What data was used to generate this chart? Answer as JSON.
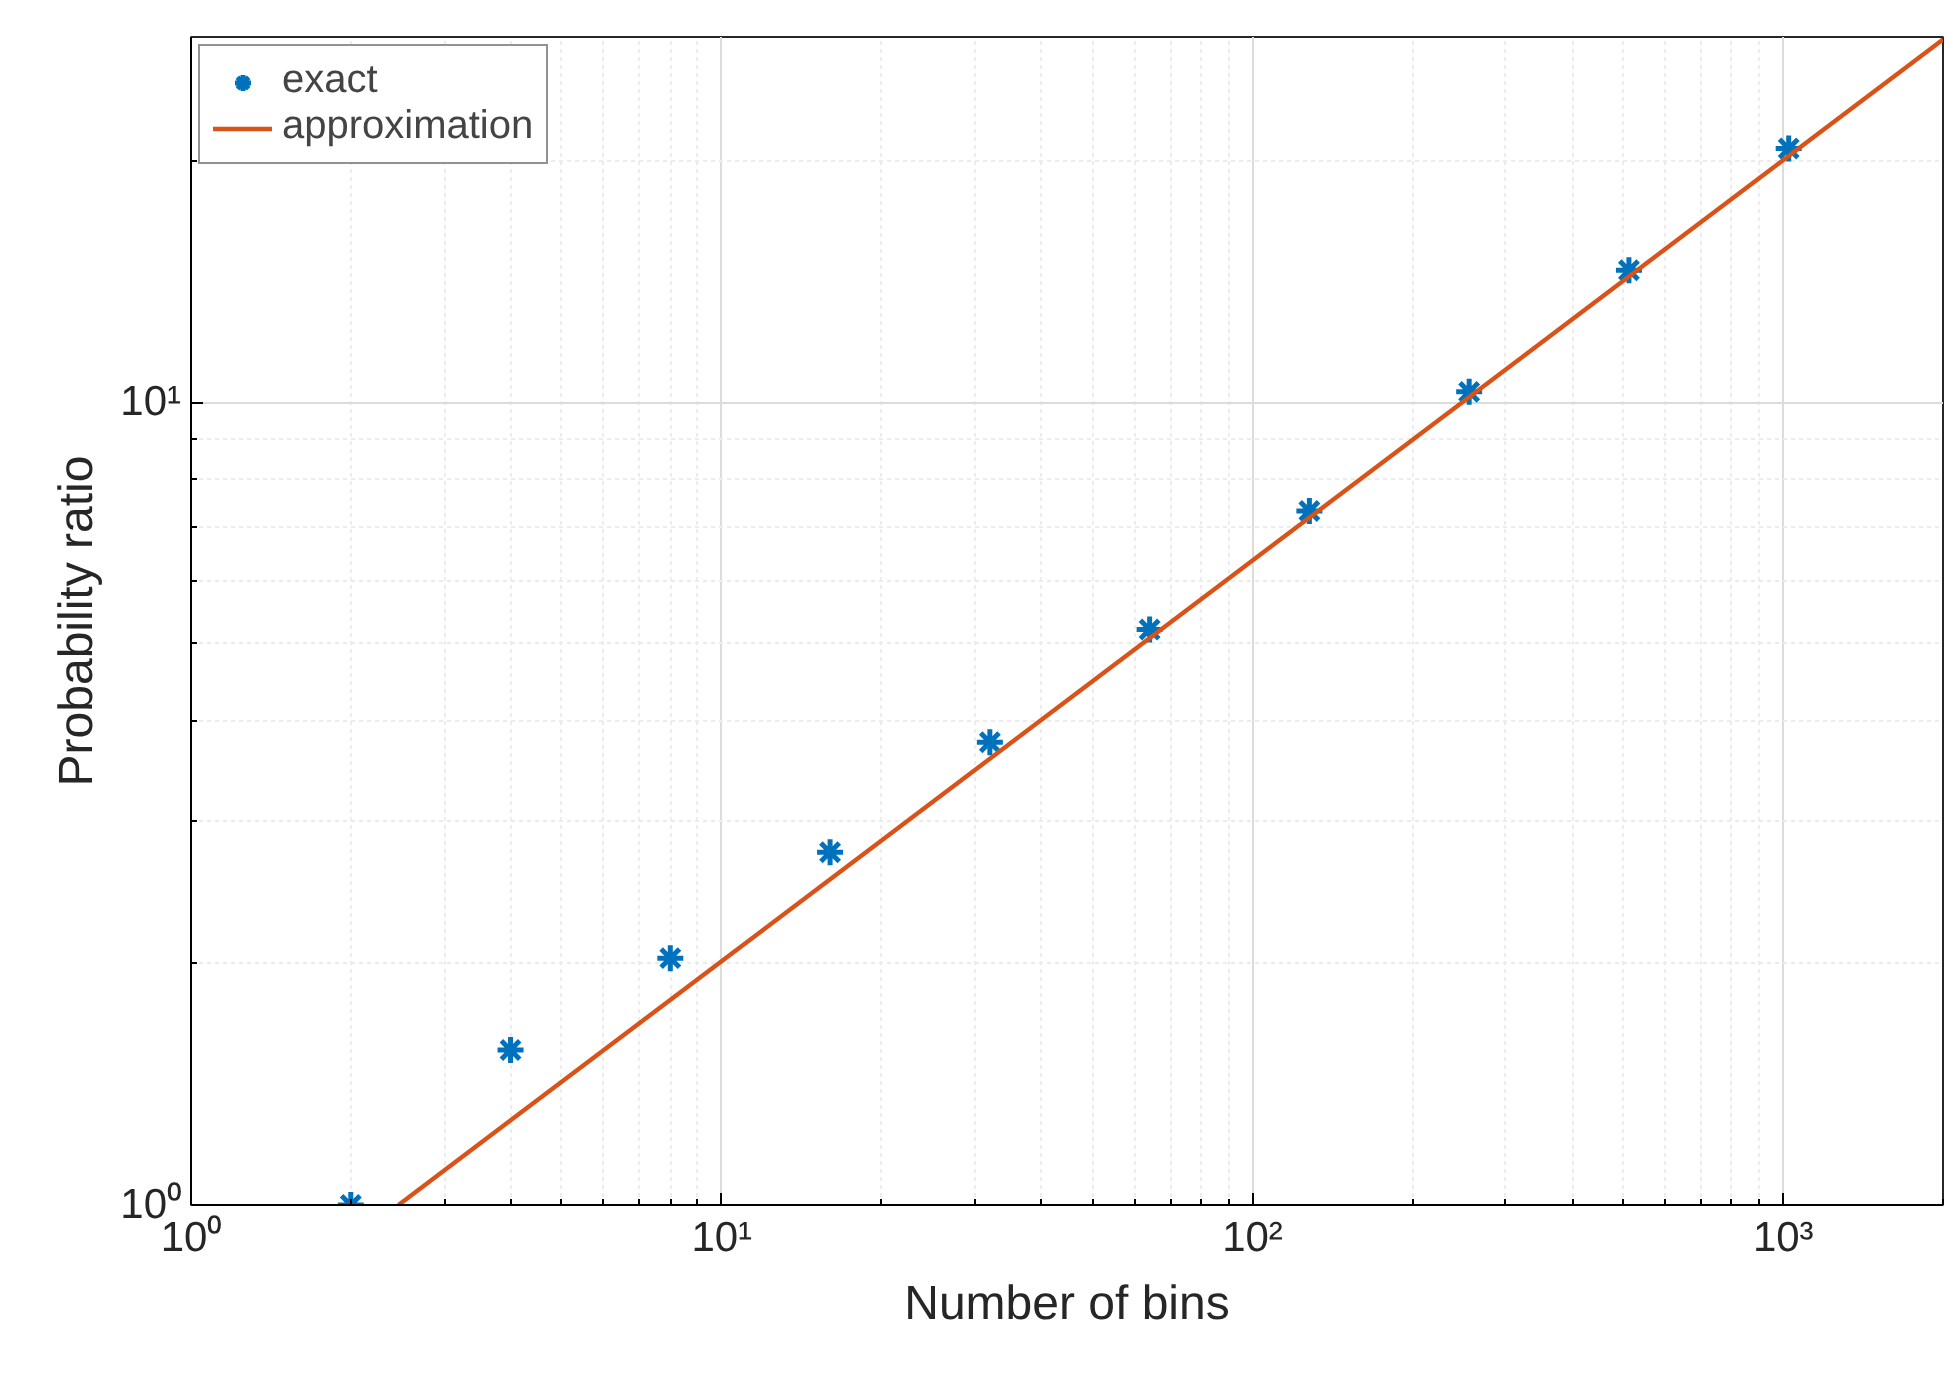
{
  "chart_data": {
    "type": "scatter",
    "xlabel": "Number of bins",
    "ylabel": "Probability ratio",
    "log": "xy",
    "grid": true,
    "legend": "top left",
    "xlim": [
      1,
      2000
    ],
    "ylim": [
      1,
      28.5
    ],
    "xticks": [
      {
        "value": 1,
        "label": "10⁰"
      },
      {
        "value": 10,
        "label": "10¹"
      },
      {
        "value": 100,
        "label": "10²"
      },
      {
        "value": 1000,
        "label": "10³"
      }
    ],
    "yticks": [
      {
        "value": 1,
        "label": "10⁰"
      },
      {
        "value": 10,
        "label": "10¹"
      }
    ],
    "series": [
      {
        "name": "exact",
        "type": "scatter",
        "marker": "cross",
        "color": "#0072bd",
        "x": [
          2,
          4,
          8,
          16,
          32,
          64,
          128,
          256,
          512,
          1024
        ],
        "values": [
          1.0,
          1.56,
          2.03,
          2.75,
          3.77,
          5.21,
          7.32,
          10.3,
          14.6,
          20.7
        ]
      },
      {
        "name": "approximation",
        "type": "line",
        "marker": "none",
        "line_style": "solid",
        "color": "#d95319",
        "x": [
          2.46,
          2000
        ],
        "values": [
          1.0,
          28.3
        ]
      }
    ]
  }
}
